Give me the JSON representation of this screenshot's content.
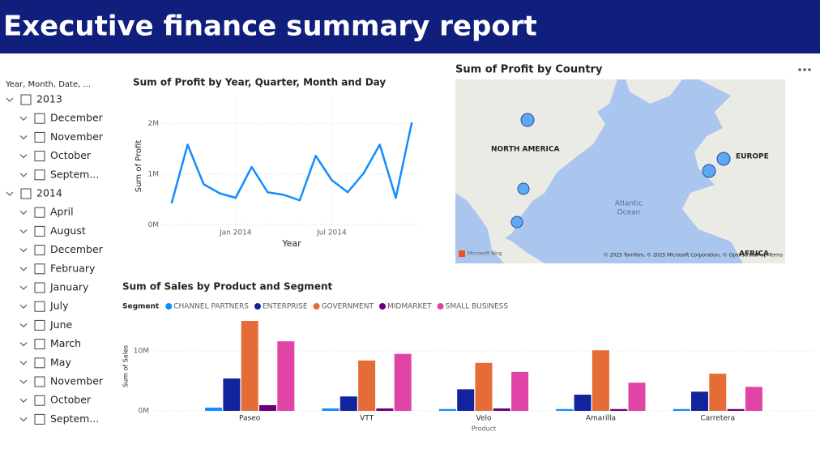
{
  "header": {
    "title": "Executive finance summary report"
  },
  "slicer": {
    "title": "Year, Month, Date, ...",
    "years": [
      {
        "label": "2013",
        "months": [
          "December",
          "November",
          "October",
          "Septem..."
        ]
      },
      {
        "label": "2014",
        "months": [
          "April",
          "August",
          "December",
          "February",
          "January",
          "July",
          "June",
          "March",
          "May",
          "November",
          "October",
          "Septem..."
        ]
      }
    ]
  },
  "map": {
    "title": "Sum of Profit by Country",
    "labels": {
      "north_america": "NORTH AMERICA",
      "europe": "EUROPE",
      "ocean": [
        "Atlantic",
        "Ocean"
      ],
      "africa": "AFRICA"
    },
    "logo": "Microsoft Bing",
    "attribution": "© 2025 TomTom, © 2025 Microsoft Corporation, © OpenStreetMap Terms"
  },
  "chart_data": [
    {
      "type": "line",
      "title": "Sum of Profit by Year, Quarter, Month and Day",
      "x_label": "Year",
      "y_label": "Sum of Profit",
      "x": [
        "2013-09",
        "2013-10",
        "2013-11",
        "2013-12",
        "2014-01",
        "2014-02",
        "2014-03",
        "2014-04",
        "2014-05",
        "2014-06",
        "2014-07",
        "2014-08",
        "2014-09",
        "2014-10",
        "2014-11",
        "2014-12"
      ],
      "series": [
        {
          "name": "Sum of Profit",
          "color": "#118DFF",
          "values": [
            420000,
            1580000,
            800000,
            620000,
            530000,
            1140000,
            640000,
            590000,
            480000,
            1360000,
            880000,
            640000,
            1020000,
            1580000,
            530000,
            2020000
          ]
        }
      ],
      "xlim": [
        "2013-08",
        "2015-01"
      ],
      "xticks": [
        {
          "value": "2014-01",
          "label": "Jan 2014"
        },
        {
          "value": "2014-07",
          "label": "Jul 2014"
        }
      ],
      "ylim": [
        -100000,
        2500000
      ],
      "yticks": [
        {
          "value": 0,
          "label": "0M"
        },
        {
          "value": 1000000,
          "label": "1M"
        },
        {
          "value": 2000000,
          "label": "2M"
        }
      ],
      "grid": true
    },
    {
      "type": "bar",
      "title": "Sum of Sales by Product and Segment",
      "legend_title": "Segment",
      "x_label": "Product",
      "y_label": "Sum of Sales",
      "categories": [
        "Paseo",
        "VTT",
        "Velo",
        "Amarilla",
        "Carretera"
      ],
      "series": [
        {
          "name": "CHANNEL PARTNERS",
          "color": "#118DFF",
          "values": [
            540000,
            400000,
            300000,
            300000,
            300000
          ]
        },
        {
          "name": "ENTERPRISE",
          "color": "#12239E",
          "values": [
            5400000,
            2400000,
            3600000,
            2700000,
            3200000
          ]
        },
        {
          "name": "GOVERNMENT",
          "color": "#E66C37",
          "values": [
            15000000,
            8400000,
            8000000,
            10100000,
            6200000
          ]
        },
        {
          "name": "MIDMARKET",
          "color": "#6B007B",
          "values": [
            950000,
            400000,
            400000,
            300000,
            300000
          ]
        },
        {
          "name": "SMALL BUSINESS",
          "color": "#E044A7",
          "values": [
            11600000,
            9500000,
            6500000,
            4700000,
            4000000
          ]
        }
      ],
      "ylim": [
        0,
        16000000
      ],
      "yticks": [
        {
          "value": 0,
          "label": "0M"
        },
        {
          "value": 10000000,
          "label": "10M"
        }
      ],
      "grid": true
    }
  ]
}
